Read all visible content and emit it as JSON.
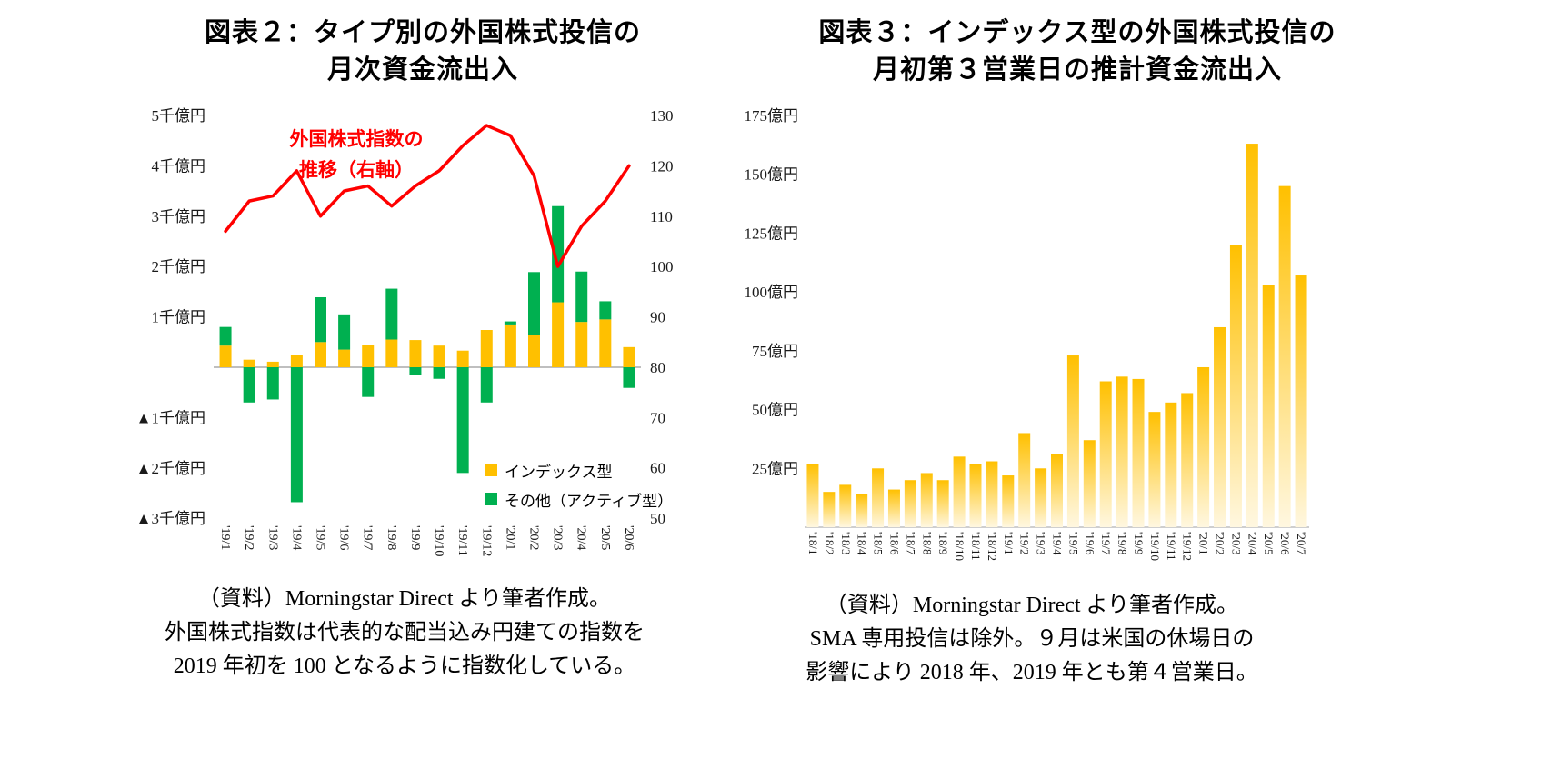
{
  "page": {
    "background": "#ffffff"
  },
  "chart_data": [
    {
      "id": "fig2",
      "type": "bar",
      "subtype": "stacked-bar-with-line",
      "title": "図表２：タイプ別の外国株式投信の月次資金流出入",
      "title_lines": [
        "図表２：タイプ別の外国株式投信の",
        "月次資金流出入"
      ],
      "categories": [
        "'19/1",
        "'19/2",
        "'19/3",
        "'19/4",
        "'19/5",
        "'19/6",
        "'19/7",
        "'19/8",
        "'19/9",
        "'19/10",
        "'19/11",
        "'19/12",
        "'20/1",
        "'20/2",
        "'20/3",
        "'20/4",
        "'20/5",
        "'20/6"
      ],
      "series": [
        {
          "name": "インデックス型",
          "type": "bar",
          "color": "#FFC000",
          "axis": "left",
          "values": [
            430,
            150,
            110,
            250,
            500,
            350,
            450,
            550,
            540,
            430,
            330,
            740,
            850,
            650,
            1290,
            900,
            950,
            400
          ]
        },
        {
          "name": "その他（アクティブ型）",
          "type": "bar",
          "color": "#00B050",
          "axis": "left",
          "values": [
            370,
            -700,
            -640,
            -2680,
            890,
            700,
            -590,
            1010,
            -160,
            -230,
            -2100,
            -700,
            60,
            1240,
            1910,
            1000,
            360,
            -410
          ]
        },
        {
          "name": "外国株式指数の推移（右軸）",
          "type": "line",
          "color": "#FF0000",
          "axis": "right",
          "values": [
            107,
            113,
            114,
            119,
            110,
            115,
            116,
            112,
            116,
            119,
            124,
            128,
            126,
            118,
            100,
            108,
            113,
            120
          ]
        }
      ],
      "left_axis": {
        "unit": "億円",
        "min": -3000,
        "max": 5000,
        "tick_values": [
          5000,
          4000,
          3000,
          2000,
          1000,
          -1000,
          -2000,
          -3000
        ],
        "ticks": [
          "5千億円",
          "4千億円",
          "3千億円",
          "2千億円",
          "1千億円",
          "▲1千億円",
          "▲2千億円",
          "▲3千億円"
        ]
      },
      "right_axis": {
        "min": 50,
        "max": 130,
        "ticks": [
          130,
          120,
          110,
          100,
          90,
          80,
          70,
          60,
          50
        ]
      },
      "annotation": {
        "lines": [
          "外国株式指数の",
          "推移（右軸）"
        ],
        "color": "#FF0000"
      },
      "legend": [
        {
          "label": "インデックス型",
          "color": "#FFC000"
        },
        {
          "label": "その他（アクティブ型）",
          "color": "#00B050"
        }
      ],
      "grid": false,
      "legend_position": "inside-lower-right",
      "caption_lines": [
        "（資料）Morningstar Direct より筆者作成。",
        "外国株式指数は代表的な配当込み円建ての指数を",
        "2019 年初を 100 となるように指数化している。"
      ]
    },
    {
      "id": "fig3",
      "type": "bar",
      "title": "図表３：インデックス型の外国株式投信の月初第３営業日の推計資金流出入",
      "title_lines": [
        "図表３：インデックス型の外国株式投信の",
        "月初第３営業日の推計資金流出入"
      ],
      "categories": [
        "'18/1",
        "'18/2",
        "'18/3",
        "'18/4",
        "'18/5",
        "'18/6",
        "'18/7",
        "'18/8",
        "'18/9",
        "'18/10",
        "'18/11",
        "'18/12",
        "'19/1",
        "'19/2",
        "'19/3",
        "'19/4",
        "'19/5",
        "'19/6",
        "'19/7",
        "'19/8",
        "'19/9",
        "'19/10",
        "'19/11",
        "'19/12",
        "'20/1",
        "'20/2",
        "'20/3",
        "'20/4",
        "'20/5",
        "'20/6",
        "'20/7"
      ],
      "values": [
        27,
        15,
        18,
        14,
        25,
        16,
        20,
        23,
        20,
        30,
        27,
        28,
        22,
        40,
        25,
        31,
        73,
        37,
        62,
        64,
        63,
        49,
        53,
        57,
        68,
        85,
        120,
        163,
        103,
        145,
        107
      ],
      "bar_gradient": {
        "top": "#FFC000",
        "bottom": "#FFF7E0"
      },
      "y_axis": {
        "unit": "億円",
        "min": 0,
        "max": 175,
        "tick_values": [
          175,
          150,
          125,
          100,
          75,
          50,
          25
        ],
        "ticks": [
          "175億円",
          "150億円",
          "125億円",
          "100億円",
          "75億円",
          "50億円",
          "25億円"
        ]
      },
      "grid": false,
      "caption_lines": [
        "（資料）Morningstar Direct より筆者作成。",
        "SMA 専用投信は除外。９月は米国の休場日の",
        "影響により 2018 年、2019 年とも第４営業日。"
      ]
    }
  ]
}
